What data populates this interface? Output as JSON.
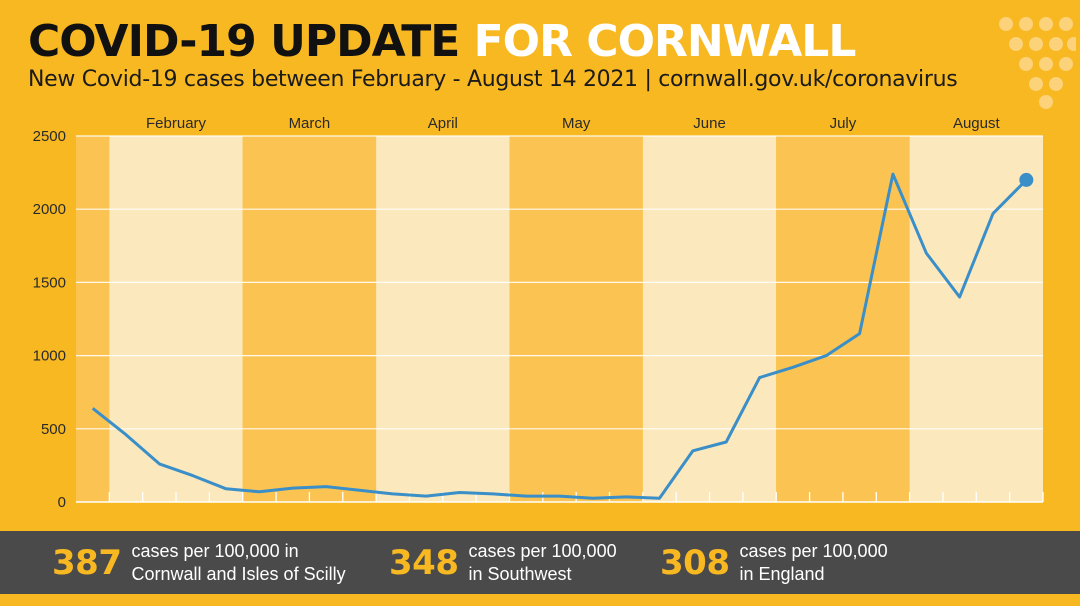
{
  "header": {
    "title_part1": "COVID-19 UPDATE",
    "title_part2": "FOR CORNWALL",
    "subtitle": "New Covid-19 cases between February - August 14 2021 | cornwall.gov.uk/coronavirus"
  },
  "chart_data": {
    "type": "line",
    "title": "COVID-19 UPDATE FOR CORNWALL",
    "subtitle": "New Covid-19 cases between February - August 14 2021",
    "xlabel": "",
    "ylabel": "",
    "ylim": [
      0,
      2500
    ],
    "yticks": [
      0,
      500,
      1000,
      1500,
      2000,
      2500
    ],
    "ytick_labels": [
      "0",
      "500",
      "1000",
      "1500",
      "2000",
      "2500"
    ],
    "months": [
      "February",
      "March",
      "April",
      "May",
      "June",
      "July",
      "August"
    ],
    "weeks_per_month": [
      4,
      4,
      4,
      4,
      4,
      4,
      3
    ],
    "lead_weeks": 1,
    "grid": true,
    "series": [
      {
        "name": "New cases",
        "values": [
          640,
          460,
          260,
          180,
          90,
          70,
          95,
          105,
          80,
          55,
          40,
          65,
          55,
          40,
          40,
          25,
          35,
          25,
          350,
          410,
          850,
          920,
          1000,
          1150,
          2240,
          1700,
          1400,
          1970,
          2200
        ]
      }
    ],
    "colors": {
      "line": "#3a8fc8",
      "band_light": "#fce8bd",
      "band_dark": "#fbc452",
      "grid": "#ffffff"
    }
  },
  "stats": [
    {
      "value": "387",
      "line1": "cases per 100,000 in",
      "line2": "Cornwall and Isles of Scilly"
    },
    {
      "value": "348",
      "line1": "cases per 100,000",
      "line2": "in Southwest"
    },
    {
      "value": "308",
      "line1": "cases per 100,000",
      "line2": "in England"
    }
  ]
}
